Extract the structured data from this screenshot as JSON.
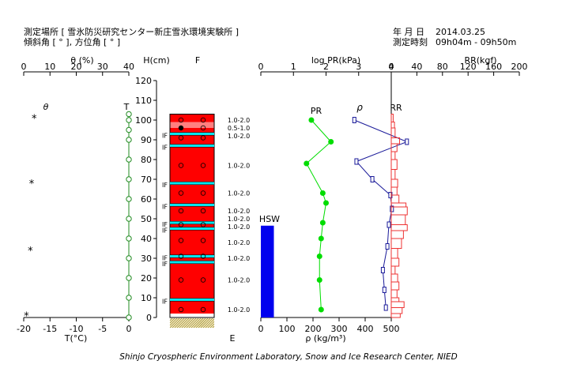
{
  "header": {
    "site_line": "測定場所 [ 雪氷防災研究センター新庄雪氷環境実験所 ]",
    "angle_line": "傾斜角 [ ° ], 方位角 [ ° ]",
    "date_label": "年 月 日",
    "date_value": "2014.03.25",
    "time_label": "測定時刻",
    "time_value": "09h04m - 09h50m"
  },
  "footer": {
    "credit": "Shinjo Cryospheric Environment Laboratory, Snow and Ice Research Center, NIED"
  },
  "colors": {
    "snow_red": "#ff0000",
    "ice_layer": "#00e5ee",
    "pr_green": "#00dd00",
    "density_blue": "#1a1a99",
    "rr_red": "#ee3333",
    "hsw_blue": "#0000ee",
    "temp_green": "#228b22",
    "ground": "#a08c28"
  },
  "chart_data": [
    {
      "type": "scatter",
      "name": "temperature",
      "title_top": "θ (%)",
      "xlabel": "T(°C)",
      "ylabel": "H(cm)",
      "top_ticks": [
        "0",
        "10",
        "20",
        "30",
        "40"
      ],
      "bottom_ticks": [
        "-20",
        "-15",
        "-10",
        "-5",
        "0"
      ],
      "ylim": [
        0,
        120
      ],
      "y_ticks": [
        "0",
        "10",
        "20",
        "30",
        "40",
        "50",
        "60",
        "70",
        "80",
        "90",
        "100",
        "110",
        "120"
      ],
      "theta_label": "θ",
      "theta_points": [
        {
          "h": 101,
          "theta": 4
        },
        {
          "h": 68,
          "theta": 3
        },
        {
          "h": 34,
          "theta": 2.5
        },
        {
          "h": 1,
          "theta": 1
        }
      ],
      "temp_label": "T",
      "temp_points": [
        {
          "h": 103,
          "t": 0
        },
        {
          "h": 100,
          "t": 0
        },
        {
          "h": 95,
          "t": 0
        },
        {
          "h": 90,
          "t": 0
        },
        {
          "h": 80,
          "t": 0
        },
        {
          "h": 70,
          "t": 0
        },
        {
          "h": 60,
          "t": 0
        },
        {
          "h": 50,
          "t": 0
        },
        {
          "h": 40,
          "t": 0
        },
        {
          "h": 30,
          "t": 0
        },
        {
          "h": 20,
          "t": 0
        },
        {
          "h": 10,
          "t": 0
        },
        {
          "h": 0,
          "t": 0
        }
      ]
    },
    {
      "type": "table",
      "name": "snow-stratigraphy",
      "top_label": "F",
      "bottom_label": "E",
      "total_height": 103,
      "layers": [
        {
          "bottom": 0,
          "top": 2,
          "kind": "ground"
        },
        {
          "bottom": 2,
          "top": 96,
          "kind": "wet"
        },
        {
          "bottom": 96,
          "top": 99,
          "kind": "wet-light"
        },
        {
          "bottom": 99,
          "top": 103,
          "kind": "wet"
        }
      ],
      "ice_layers": [
        {
          "h": 9,
          "label": "IF"
        },
        {
          "h": 28,
          "label": "IF"
        },
        {
          "h": 31,
          "label": "IF"
        },
        {
          "h": 45,
          "label": "IF"
        },
        {
          "h": 48,
          "label": "IF"
        },
        {
          "h": 57,
          "label": "IF"
        },
        {
          "h": 68,
          "label": "IF"
        },
        {
          "h": 87,
          "label": "IF"
        },
        {
          "h": 93,
          "label": "IF"
        }
      ],
      "grain_marks": [
        {
          "h": 100,
          "filled": false
        },
        {
          "h": 96,
          "filled": true
        },
        {
          "h": 91,
          "filled": false
        },
        {
          "h": 77,
          "filled": false
        },
        {
          "h": 63,
          "filled": false
        },
        {
          "h": 54,
          "filled": false
        },
        {
          "h": 47,
          "filled": false
        },
        {
          "h": 39,
          "filled": false
        },
        {
          "h": 31,
          "filled": false
        },
        {
          "h": 19,
          "filled": false
        },
        {
          "h": 4,
          "filled": false
        }
      ],
      "grain_sizes": [
        {
          "h": 100,
          "label": "1.0-2.0"
        },
        {
          "h": 96,
          "label": "0.5-1.0"
        },
        {
          "h": 92,
          "label": "1.0-2.0"
        },
        {
          "h": 77,
          "label": "1.0-2.0"
        },
        {
          "h": 63,
          "label": "1.0-2.0"
        },
        {
          "h": 54,
          "label": "1.0-2.0"
        },
        {
          "h": 50,
          "label": "1.0-2.0"
        },
        {
          "h": 46,
          "label": "1.0-2.0"
        },
        {
          "h": 38,
          "label": "1.0-2.0"
        },
        {
          "h": 30,
          "label": "1.0-2.0"
        },
        {
          "h": 19,
          "label": "1.0-2.0"
        },
        {
          "h": 4,
          "label": "1.0-2.0"
        }
      ]
    },
    {
      "type": "line",
      "name": "pressure-density",
      "title_top": "log PR(kPa)",
      "xlabel": "ρ (kg/m³)",
      "top_ticks": [
        "0",
        "1",
        "2",
        "3",
        "4"
      ],
      "top_xlim": [
        0,
        4
      ],
      "bottom_ticks": [
        "0",
        "100",
        "200",
        "300",
        "400",
        "500"
      ],
      "bottom_xlim": [
        0,
        500
      ],
      "hsw": {
        "label": "HSW",
        "height": 46.5,
        "x_from": 0,
        "x_to": 50
      },
      "pr_label": "PR",
      "pr_points": [
        {
          "h": 100,
          "logpr": 1.55
        },
        {
          "h": 89,
          "logpr": 2.15
        },
        {
          "h": 78,
          "logpr": 1.4
        },
        {
          "h": 63,
          "logpr": 1.9
        },
        {
          "h": 58,
          "logpr": 2.0
        },
        {
          "h": 48,
          "logpr": 1.9
        },
        {
          "h": 40,
          "logpr": 1.85
        },
        {
          "h": 31,
          "logpr": 1.8
        },
        {
          "h": 19,
          "logpr": 1.8
        },
        {
          "h": 4,
          "logpr": 1.85
        }
      ],
      "density_label": "ρ",
      "density_points": [
        {
          "h": 100,
          "rho": 385
        },
        {
          "h": 89,
          "rho": 560
        },
        {
          "h": 79,
          "rho": 392
        },
        {
          "h": 70,
          "rho": 445
        },
        {
          "h": 62,
          "rho": 505
        },
        {
          "h": 55,
          "rho": 510
        },
        {
          "h": 47,
          "rho": 500
        },
        {
          "h": 36,
          "rho": 495
        },
        {
          "h": 24,
          "rho": 480
        },
        {
          "h": 14,
          "rho": 485
        },
        {
          "h": 5,
          "rho": 490
        }
      ]
    },
    {
      "type": "bar",
      "name": "ram-resistance",
      "title_top": "RR(kgf)",
      "top_ticks": [
        "0",
        "40",
        "80",
        "120",
        "160",
        "200"
      ],
      "xlim": [
        0,
        200
      ],
      "rr_label": "RR",
      "segments": [
        {
          "from": 99,
          "to": 103,
          "rr": 3
        },
        {
          "from": 96,
          "to": 99,
          "rr": 5
        },
        {
          "from": 91,
          "to": 96,
          "rr": 6
        },
        {
          "from": 88,
          "to": 91,
          "rr": 13
        },
        {
          "from": 84,
          "to": 88,
          "rr": 9
        },
        {
          "from": 80,
          "to": 84,
          "rr": 6
        },
        {
          "from": 75,
          "to": 80,
          "rr": 9
        },
        {
          "from": 70,
          "to": 75,
          "rr": 6
        },
        {
          "from": 66,
          "to": 70,
          "rr": 10
        },
        {
          "from": 62,
          "to": 66,
          "rr": 9
        },
        {
          "from": 58,
          "to": 62,
          "rr": 12
        },
        {
          "from": 56,
          "to": 58,
          "rr": 23
        },
        {
          "from": 52,
          "to": 56,
          "rr": 25
        },
        {
          "from": 47,
          "to": 52,
          "rr": 22
        },
        {
          "from": 44,
          "to": 47,
          "rr": 25
        },
        {
          "from": 40,
          "to": 44,
          "rr": 19
        },
        {
          "from": 35,
          "to": 40,
          "rr": 16
        },
        {
          "from": 30,
          "to": 35,
          "rr": 10
        },
        {
          "from": 26,
          "to": 30,
          "rr": 12
        },
        {
          "from": 22,
          "to": 26,
          "rr": 6
        },
        {
          "from": 18,
          "to": 22,
          "rr": 10
        },
        {
          "from": 14,
          "to": 18,
          "rr": 12
        },
        {
          "from": 10,
          "to": 14,
          "rr": 9
        },
        {
          "from": 8,
          "to": 10,
          "rr": 12
        },
        {
          "from": 5,
          "to": 8,
          "rr": 20
        },
        {
          "from": 2,
          "to": 5,
          "rr": 17
        },
        {
          "from": 0,
          "to": 2,
          "rr": 14
        }
      ]
    }
  ]
}
